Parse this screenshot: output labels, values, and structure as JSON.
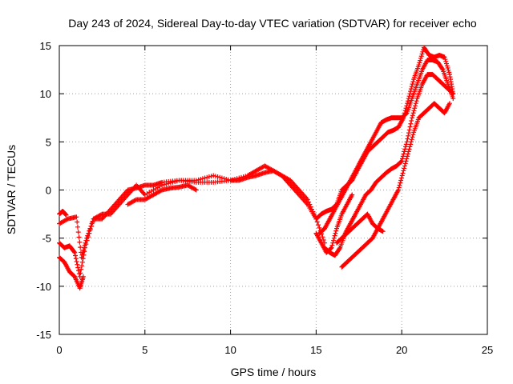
{
  "chart_data": {
    "type": "scatter",
    "title": "Day 243 of 2024, Sidereal Day-to-day VTEC variation (SDTVAR) for receiver echo",
    "xlabel": "GPS time / hours",
    "ylabel": "SDTVAR / TECUs",
    "xlim": [
      0,
      25
    ],
    "ylim": [
      -15,
      15
    ],
    "xticks": [
      "0",
      "5",
      "10",
      "15",
      "20",
      "25"
    ],
    "yticks": [
      "-15",
      "-10",
      "-5",
      "0",
      "5",
      "10",
      "15"
    ],
    "grid": true,
    "marker": "+",
    "color": "#ff0000",
    "series": [
      {
        "name": "track-1",
        "x": [
          0.0,
          0.5,
          1.0,
          1.3,
          1.6,
          2.0,
          2.5,
          3.0,
          3.5,
          4.0,
          4.5,
          5.0,
          5.5,
          6.0,
          7.0,
          8.0,
          9.0,
          10.0,
          10.5,
          11.0,
          11.5,
          12.0,
          12.5,
          13.0,
          13.5,
          14.0,
          14.5,
          15.0,
          15.5
        ],
        "y": [
          -3.5,
          -3.0,
          -2.8,
          -7.0,
          -5.0,
          -3.0,
          -3.0,
          -2.0,
          -1.0,
          0.0,
          0.2,
          0.5,
          0.5,
          0.8,
          1.0,
          0.8,
          0.8,
          1.0,
          1.0,
          1.3,
          1.5,
          1.8,
          2.0,
          1.5,
          0.5,
          -0.5,
          -1.5,
          -3.0,
          -5.5
        ]
      },
      {
        "name": "track-2",
        "x": [
          0.0,
          0.3,
          0.6,
          0.9,
          1.2,
          1.5,
          2.0,
          2.5,
          3.0,
          3.5,
          4.0,
          4.5,
          5.0,
          6.0,
          7.0,
          8.0,
          9.0,
          10.0,
          11.0,
          11.5,
          12.0,
          12.5,
          13.0,
          13.5,
          14.0,
          14.5,
          15.0
        ],
        "y": [
          -5.5,
          -6.0,
          -5.8,
          -6.5,
          -9.0,
          -6.0,
          -3.0,
          -2.5,
          -2.5,
          -1.5,
          -0.5,
          0.5,
          -0.5,
          0.5,
          1.0,
          1.0,
          1.5,
          1.0,
          1.5,
          2.0,
          2.5,
          2.0,
          1.5,
          1.0,
          0.0,
          -1.0,
          -3.0
        ]
      },
      {
        "name": "track-3",
        "x": [
          0.0,
          0.3,
          0.6,
          0.9,
          1.2,
          1.4
        ],
        "y": [
          -7.0,
          -7.5,
          -8.5,
          -9.0,
          -10.2,
          -9.0
        ]
      },
      {
        "name": "track-4",
        "x": [
          0.0,
          0.2,
          0.4
        ],
        "y": [
          -2.5,
          -2.2,
          -2.6
        ]
      },
      {
        "name": "track-5",
        "x": [
          4.0,
          4.5,
          5.0,
          5.5,
          6.0,
          6.5,
          7.0,
          7.5,
          8.0
        ],
        "y": [
          -1.5,
          -1.0,
          -1.0,
          -0.5,
          0.0,
          0.2,
          0.3,
          0.5,
          0.0
        ]
      },
      {
        "name": "track-6",
        "x": [
          15.0,
          15.3,
          15.6,
          15.9,
          16.2,
          16.5,
          16.8,
          17.1,
          17.4,
          17.7,
          18.0,
          18.3,
          18.6,
          18.9,
          19.2,
          19.5,
          19.8,
          20.1,
          20.4,
          20.7,
          21.0,
          21.3,
          21.6,
          21.9,
          22.2,
          22.5,
          22.8,
          23.0
        ],
        "y": [
          -3.0,
          -2.5,
          -2.2,
          -2.0,
          -1.5,
          0.0,
          0.5,
          1.0,
          2.0,
          3.0,
          4.0,
          4.5,
          5.0,
          5.5,
          6.0,
          6.2,
          6.5,
          7.5,
          9.5,
          11.5,
          13.0,
          14.8,
          14.0,
          13.8,
          14.0,
          13.8,
          12.0,
          10.0
        ]
      },
      {
        "name": "track-7",
        "x": [
          15.2,
          15.5,
          15.8,
          16.1,
          16.4,
          16.7,
          17.0,
          17.3,
          17.6,
          17.9,
          18.2,
          18.5,
          18.8,
          19.1,
          19.4,
          19.7,
          20.0,
          20.3,
          20.6,
          20.9,
          21.2,
          21.5,
          21.8,
          22.1,
          22.4,
          22.7,
          23.0
        ],
        "y": [
          -4.5,
          -4.0,
          -3.0,
          -2.0,
          -1.0,
          0.0,
          1.0,
          2.0,
          3.0,
          4.0,
          5.0,
          6.0,
          7.0,
          7.3,
          7.5,
          7.5,
          7.5,
          8.0,
          9.5,
          11.0,
          12.5,
          13.5,
          13.5,
          13.3,
          12.5,
          11.0,
          9.5
        ]
      },
      {
        "name": "track-8",
        "x": [
          15.5,
          15.8,
          16.1,
          16.4,
          16.7,
          17.0,
          17.3,
          17.6,
          17.9,
          18.2,
          18.5,
          18.8,
          19.1,
          19.4,
          19.7,
          20.0,
          20.3,
          20.6,
          20.9,
          21.2,
          21.5,
          21.8,
          22.1,
          22.4,
          22.7,
          23.0
        ],
        "y": [
          -6.0,
          -6.5,
          -6.8,
          -6.0,
          -4.5,
          -3.5,
          -2.5,
          -1.5,
          -0.5,
          0.0,
          0.8,
          1.3,
          1.8,
          2.2,
          2.5,
          3.0,
          5.0,
          7.5,
          9.5,
          11.0,
          12.0,
          12.0,
          11.5,
          11.0,
          10.5,
          10.0
        ]
      },
      {
        "name": "track-9",
        "x": [
          16.5,
          16.8,
          17.1,
          17.4,
          17.7,
          18.0,
          18.3,
          18.6,
          18.9,
          19.2,
          19.5,
          19.8,
          20.1,
          20.4,
          20.7,
          21.0,
          21.3,
          21.6,
          21.9,
          22.2,
          22.5,
          22.8
        ],
        "y": [
          -8.0,
          -7.5,
          -7.0,
          -6.5,
          -6.0,
          -5.5,
          -5.0,
          -4.0,
          -3.0,
          -2.0,
          -1.0,
          0.0,
          2.0,
          4.0,
          6.0,
          7.5,
          8.0,
          8.5,
          9.0,
          8.5,
          8.0,
          9.0
        ]
      },
      {
        "name": "track-10",
        "x": [
          16.2,
          16.5,
          16.8,
          17.1,
          17.4,
          17.7,
          18.0,
          18.3,
          18.6,
          18.9
        ],
        "y": [
          -5.5,
          -5.0,
          -4.5,
          -4.0,
          -3.5,
          -3.0,
          -2.5,
          -3.5,
          -4.0,
          -4.3
        ]
      },
      {
        "name": "track-11",
        "x": [
          15.0,
          15.3,
          15.6,
          15.9,
          16.2,
          16.5,
          16.8,
          17.1
        ],
        "y": [
          -4.5,
          -5.5,
          -6.5,
          -6.0,
          -4.0,
          -2.5,
          -1.5,
          -0.5
        ]
      }
    ]
  }
}
